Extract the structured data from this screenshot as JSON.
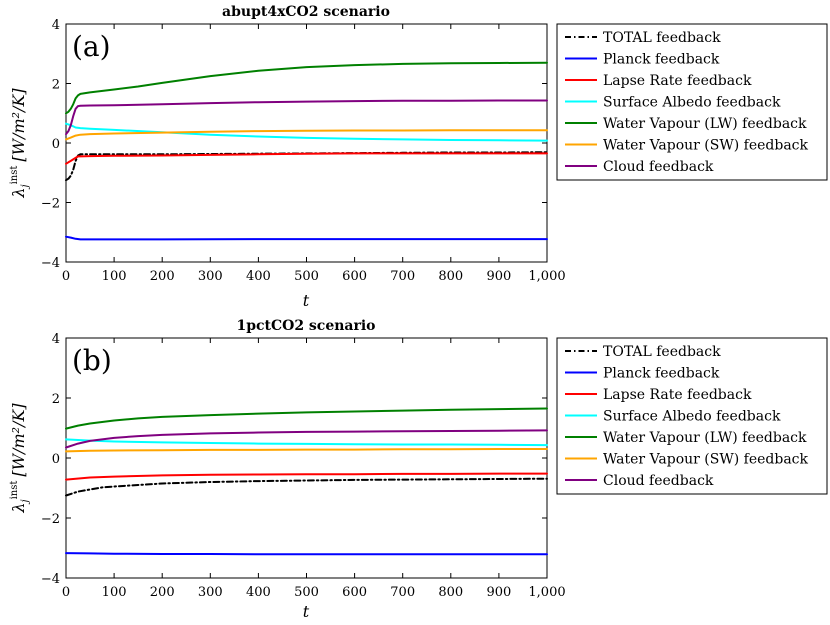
{
  "chart_data": [
    {
      "type": "line",
      "title": "abupt4xCO2 scenario",
      "panel_label": "(a)",
      "xlabel": "t",
      "ylabel_main": "λ",
      "ylabel_sub": "j",
      "ylabel_sup": "inst",
      "ylabel_unit": "[W/m²/K]",
      "xlim": [
        0,
        1000
      ],
      "ylim": [
        -4,
        4
      ],
      "xticks": [
        0,
        100,
        200,
        300,
        400,
        500,
        600,
        700,
        800,
        900,
        1000
      ],
      "xtick_labels": [
        "0",
        "100",
        "200",
        "300",
        "400",
        "500",
        "600",
        "700",
        "800",
        "900",
        "1,000"
      ],
      "yticks": [
        -4,
        -2,
        0,
        2,
        4
      ],
      "ytick_labels": [
        "−4",
        "−2",
        "0",
        "2",
        "4"
      ],
      "legend_position": "outside-right",
      "series": [
        {
          "name": "TOTAL feedback",
          "color": "#000000",
          "dash": "dashdot",
          "x": [
            0,
            5,
            10,
            15,
            20,
            25,
            30,
            40,
            60,
            100,
            150,
            200,
            300,
            400,
            500,
            600,
            700,
            800,
            900,
            1000
          ],
          "y": [
            -1.25,
            -1.2,
            -1.1,
            -0.9,
            -0.6,
            -0.42,
            -0.38,
            -0.38,
            -0.38,
            -0.38,
            -0.38,
            -0.38,
            -0.37,
            -0.36,
            -0.35,
            -0.34,
            -0.33,
            -0.32,
            -0.32,
            -0.31
          ]
        },
        {
          "name": "Planck feedback",
          "color": "#0000ff",
          "dash": "solid",
          "x": [
            0,
            10,
            20,
            30,
            50,
            100,
            200,
            400,
            600,
            800,
            1000
          ],
          "y": [
            -3.15,
            -3.18,
            -3.22,
            -3.24,
            -3.24,
            -3.24,
            -3.24,
            -3.23,
            -3.23,
            -3.23,
            -3.23
          ]
        },
        {
          "name": "Lapse Rate feedback",
          "color": "#ff0000",
          "dash": "solid",
          "x": [
            0,
            5,
            10,
            15,
            20,
            25,
            30,
            50,
            100,
            200,
            300,
            400,
            500,
            600,
            700,
            800,
            900,
            1000
          ],
          "y": [
            -0.7,
            -0.65,
            -0.6,
            -0.55,
            -0.5,
            -0.45,
            -0.45,
            -0.44,
            -0.43,
            -0.42,
            -0.4,
            -0.38,
            -0.36,
            -0.35,
            -0.35,
            -0.35,
            -0.35,
            -0.35
          ]
        },
        {
          "name": "Surface Albedo feedback",
          "color": "#00ffff",
          "dash": "solid",
          "x": [
            0,
            10,
            20,
            30,
            50,
            100,
            200,
            300,
            400,
            500,
            600,
            700,
            800,
            900,
            1000
          ],
          "y": [
            0.65,
            0.6,
            0.52,
            0.5,
            0.48,
            0.44,
            0.36,
            0.28,
            0.22,
            0.17,
            0.14,
            0.12,
            0.1,
            0.09,
            0.08
          ]
        },
        {
          "name": "Water Vapour (LW) feedback",
          "color": "#008000",
          "dash": "solid",
          "x": [
            0,
            5,
            10,
            15,
            20,
            25,
            30,
            50,
            100,
            150,
            200,
            300,
            400,
            500,
            600,
            700,
            800,
            900,
            1000
          ],
          "y": [
            1.0,
            1.05,
            1.15,
            1.3,
            1.5,
            1.6,
            1.65,
            1.7,
            1.8,
            1.9,
            2.02,
            2.25,
            2.43,
            2.55,
            2.62,
            2.66,
            2.68,
            2.69,
            2.7
          ]
        },
        {
          "name": "Water Vapour (SW) feedback",
          "color": "#ffa500",
          "dash": "solid",
          "x": [
            0,
            10,
            20,
            30,
            50,
            100,
            200,
            300,
            400,
            500,
            600,
            700,
            800,
            900,
            1000
          ],
          "y": [
            0.12,
            0.18,
            0.25,
            0.28,
            0.3,
            0.32,
            0.35,
            0.38,
            0.4,
            0.41,
            0.42,
            0.42,
            0.43,
            0.43,
            0.43
          ]
        },
        {
          "name": "Cloud feedback",
          "color": "#800080",
          "dash": "solid",
          "x": [
            0,
            5,
            10,
            15,
            20,
            25,
            30,
            50,
            100,
            200,
            300,
            400,
            500,
            600,
            700,
            800,
            900,
            1000
          ],
          "y": [
            0.3,
            0.4,
            0.6,
            0.9,
            1.15,
            1.24,
            1.25,
            1.26,
            1.27,
            1.3,
            1.34,
            1.37,
            1.39,
            1.41,
            1.42,
            1.42,
            1.43,
            1.43
          ]
        }
      ]
    },
    {
      "type": "line",
      "title": "1pctCO2 scenario",
      "panel_label": "(b)",
      "xlabel": "t",
      "ylabel_main": "λ",
      "ylabel_sub": "j",
      "ylabel_sup": "inst",
      "ylabel_unit": "[W/m²/K]",
      "xlim": [
        0,
        1000
      ],
      "ylim": [
        -4,
        4
      ],
      "xticks": [
        0,
        100,
        200,
        300,
        400,
        500,
        600,
        700,
        800,
        900,
        1000
      ],
      "xtick_labels": [
        "0",
        "100",
        "200",
        "300",
        "400",
        "500",
        "600",
        "700",
        "800",
        "900",
        "1,000"
      ],
      "yticks": [
        -4,
        -2,
        0,
        2,
        4
      ],
      "ytick_labels": [
        "−4",
        "−2",
        "0",
        "2",
        "4"
      ],
      "legend_position": "outside-right",
      "series": [
        {
          "name": "TOTAL feedback",
          "color": "#000000",
          "dash": "dashdot",
          "x": [
            0,
            25,
            50,
            75,
            100,
            150,
            200,
            300,
            400,
            500,
            600,
            700,
            800,
            900,
            1000
          ],
          "y": [
            -1.25,
            -1.12,
            -1.05,
            -0.98,
            -0.95,
            -0.9,
            -0.85,
            -0.8,
            -0.77,
            -0.75,
            -0.73,
            -0.72,
            -0.71,
            -0.7,
            -0.69
          ]
        },
        {
          "name": "Planck feedback",
          "color": "#0000ff",
          "dash": "solid",
          "x": [
            0,
            50,
            100,
            200,
            300,
            400,
            500,
            600,
            700,
            800,
            900,
            1000
          ],
          "y": [
            -3.17,
            -3.18,
            -3.19,
            -3.2,
            -3.2,
            -3.21,
            -3.21,
            -3.21,
            -3.21,
            -3.21,
            -3.21,
            -3.21
          ]
        },
        {
          "name": "Lapse Rate feedback",
          "color": "#ff0000",
          "dash": "solid",
          "x": [
            0,
            50,
            100,
            200,
            300,
            400,
            500,
            600,
            700,
            800,
            900,
            1000
          ],
          "y": [
            -0.72,
            -0.65,
            -0.62,
            -0.58,
            -0.56,
            -0.55,
            -0.54,
            -0.54,
            -0.53,
            -0.53,
            -0.52,
            -0.52
          ]
        },
        {
          "name": "Surface Albedo feedback",
          "color": "#00ffff",
          "dash": "solid",
          "x": [
            0,
            50,
            100,
            200,
            300,
            400,
            500,
            600,
            700,
            800,
            900,
            1000
          ],
          "y": [
            0.62,
            0.58,
            0.55,
            0.52,
            0.5,
            0.48,
            0.47,
            0.46,
            0.45,
            0.45,
            0.44,
            0.43
          ]
        },
        {
          "name": "Water Vapour (LW) feedback",
          "color": "#008000",
          "dash": "solid",
          "x": [
            0,
            25,
            50,
            100,
            150,
            200,
            300,
            400,
            500,
            600,
            700,
            800,
            900,
            1000
          ],
          "y": [
            0.98,
            1.08,
            1.15,
            1.25,
            1.32,
            1.37,
            1.43,
            1.48,
            1.52,
            1.55,
            1.58,
            1.61,
            1.63,
            1.65
          ]
        },
        {
          "name": "Water Vapour (SW) feedback",
          "color": "#ffa500",
          "dash": "solid",
          "x": [
            0,
            50,
            100,
            200,
            300,
            400,
            500,
            600,
            700,
            800,
            900,
            1000
          ],
          "y": [
            0.22,
            0.24,
            0.25,
            0.26,
            0.27,
            0.27,
            0.28,
            0.28,
            0.29,
            0.29,
            0.3,
            0.3
          ]
        },
        {
          "name": "Cloud feedback",
          "color": "#800080",
          "dash": "solid",
          "x": [
            0,
            25,
            50,
            100,
            150,
            200,
            300,
            400,
            500,
            600,
            700,
            800,
            900,
            1000
          ],
          "y": [
            0.35,
            0.48,
            0.57,
            0.67,
            0.73,
            0.77,
            0.82,
            0.85,
            0.87,
            0.88,
            0.89,
            0.9,
            0.91,
            0.92
          ]
        }
      ]
    }
  ]
}
